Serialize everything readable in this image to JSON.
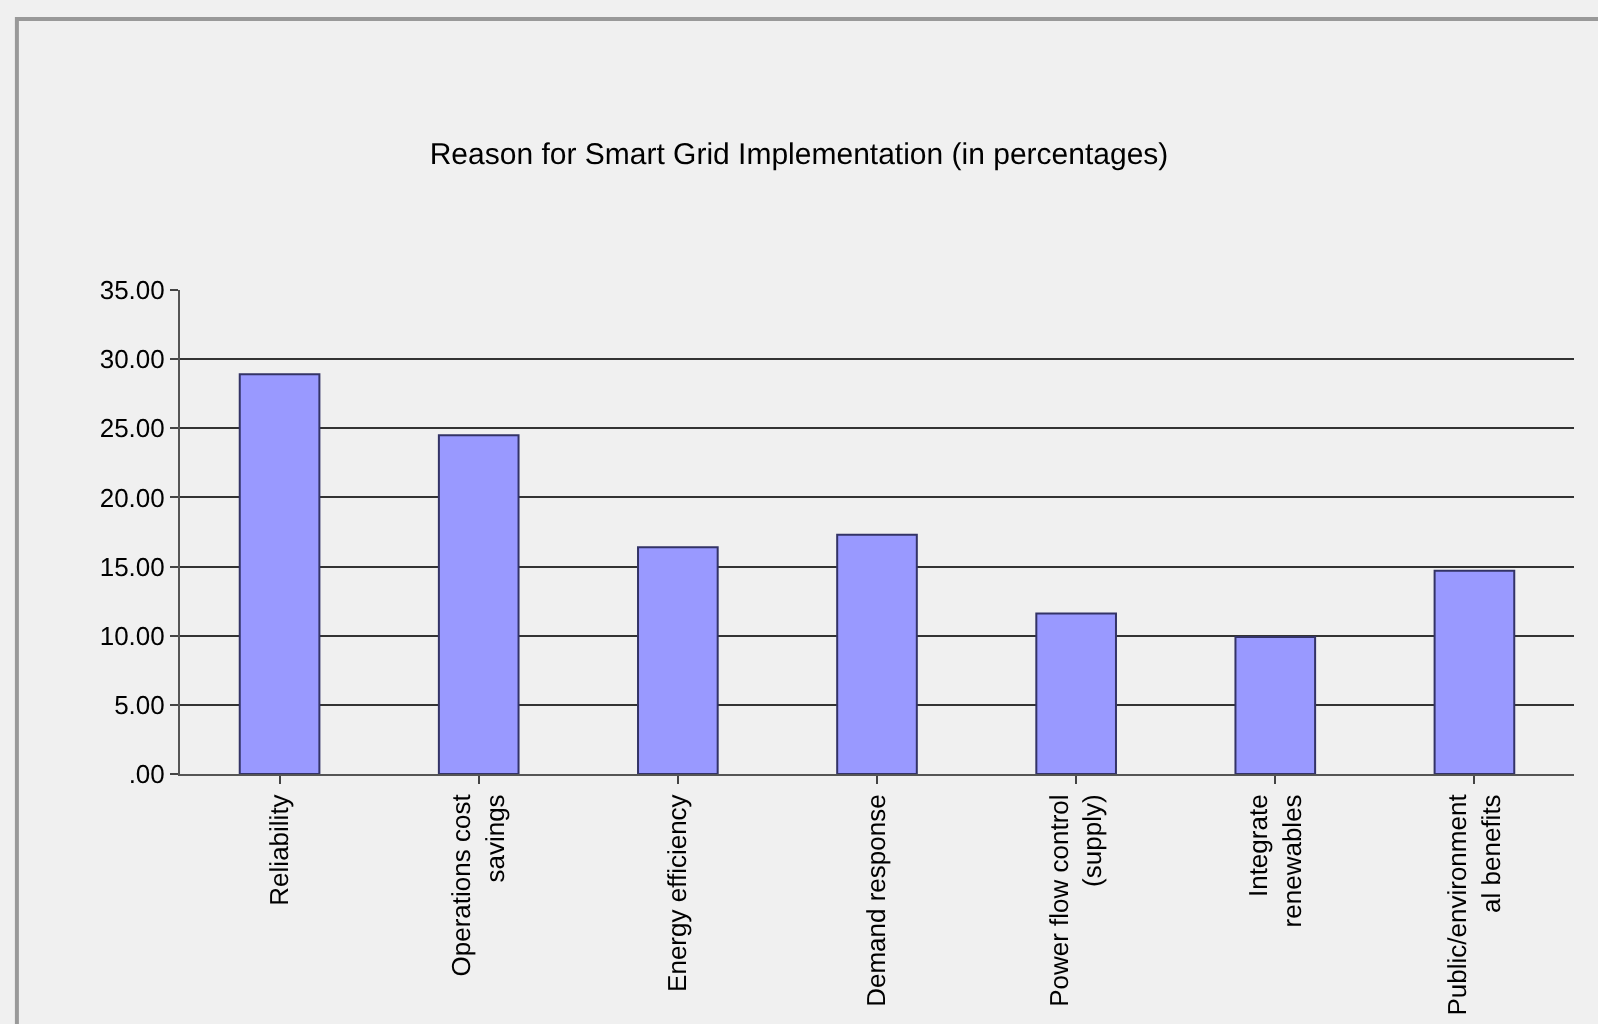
{
  "chart_data": {
    "type": "bar",
    "title": "Reason for Smart Grid Implementation (in percentages)",
    "categories": [
      "Reliability",
      "Operations cost\nsavings",
      "Energy efficiency",
      "Demand response",
      "Power flow control\n(supply)",
      "Integrate\nrenewables",
      "Public/environment\nal benefits"
    ],
    "values": [
      28.9,
      24.5,
      16.4,
      17.3,
      11.6,
      9.9,
      14.7
    ],
    "color": "#9999ff",
    "ylim": [
      0,
      35
    ],
    "yticks": [
      {
        "value": 0,
        "label": ".00"
      },
      {
        "value": 5,
        "label": "5.00"
      },
      {
        "value": 10,
        "label": "10.00"
      },
      {
        "value": 15,
        "label": "15.00"
      },
      {
        "value": 20,
        "label": "20.00"
      },
      {
        "value": 25,
        "label": "25.00"
      },
      {
        "value": 30,
        "label": "30.00"
      },
      {
        "value": 35,
        "label": "35.00"
      }
    ],
    "grid": "y"
  }
}
